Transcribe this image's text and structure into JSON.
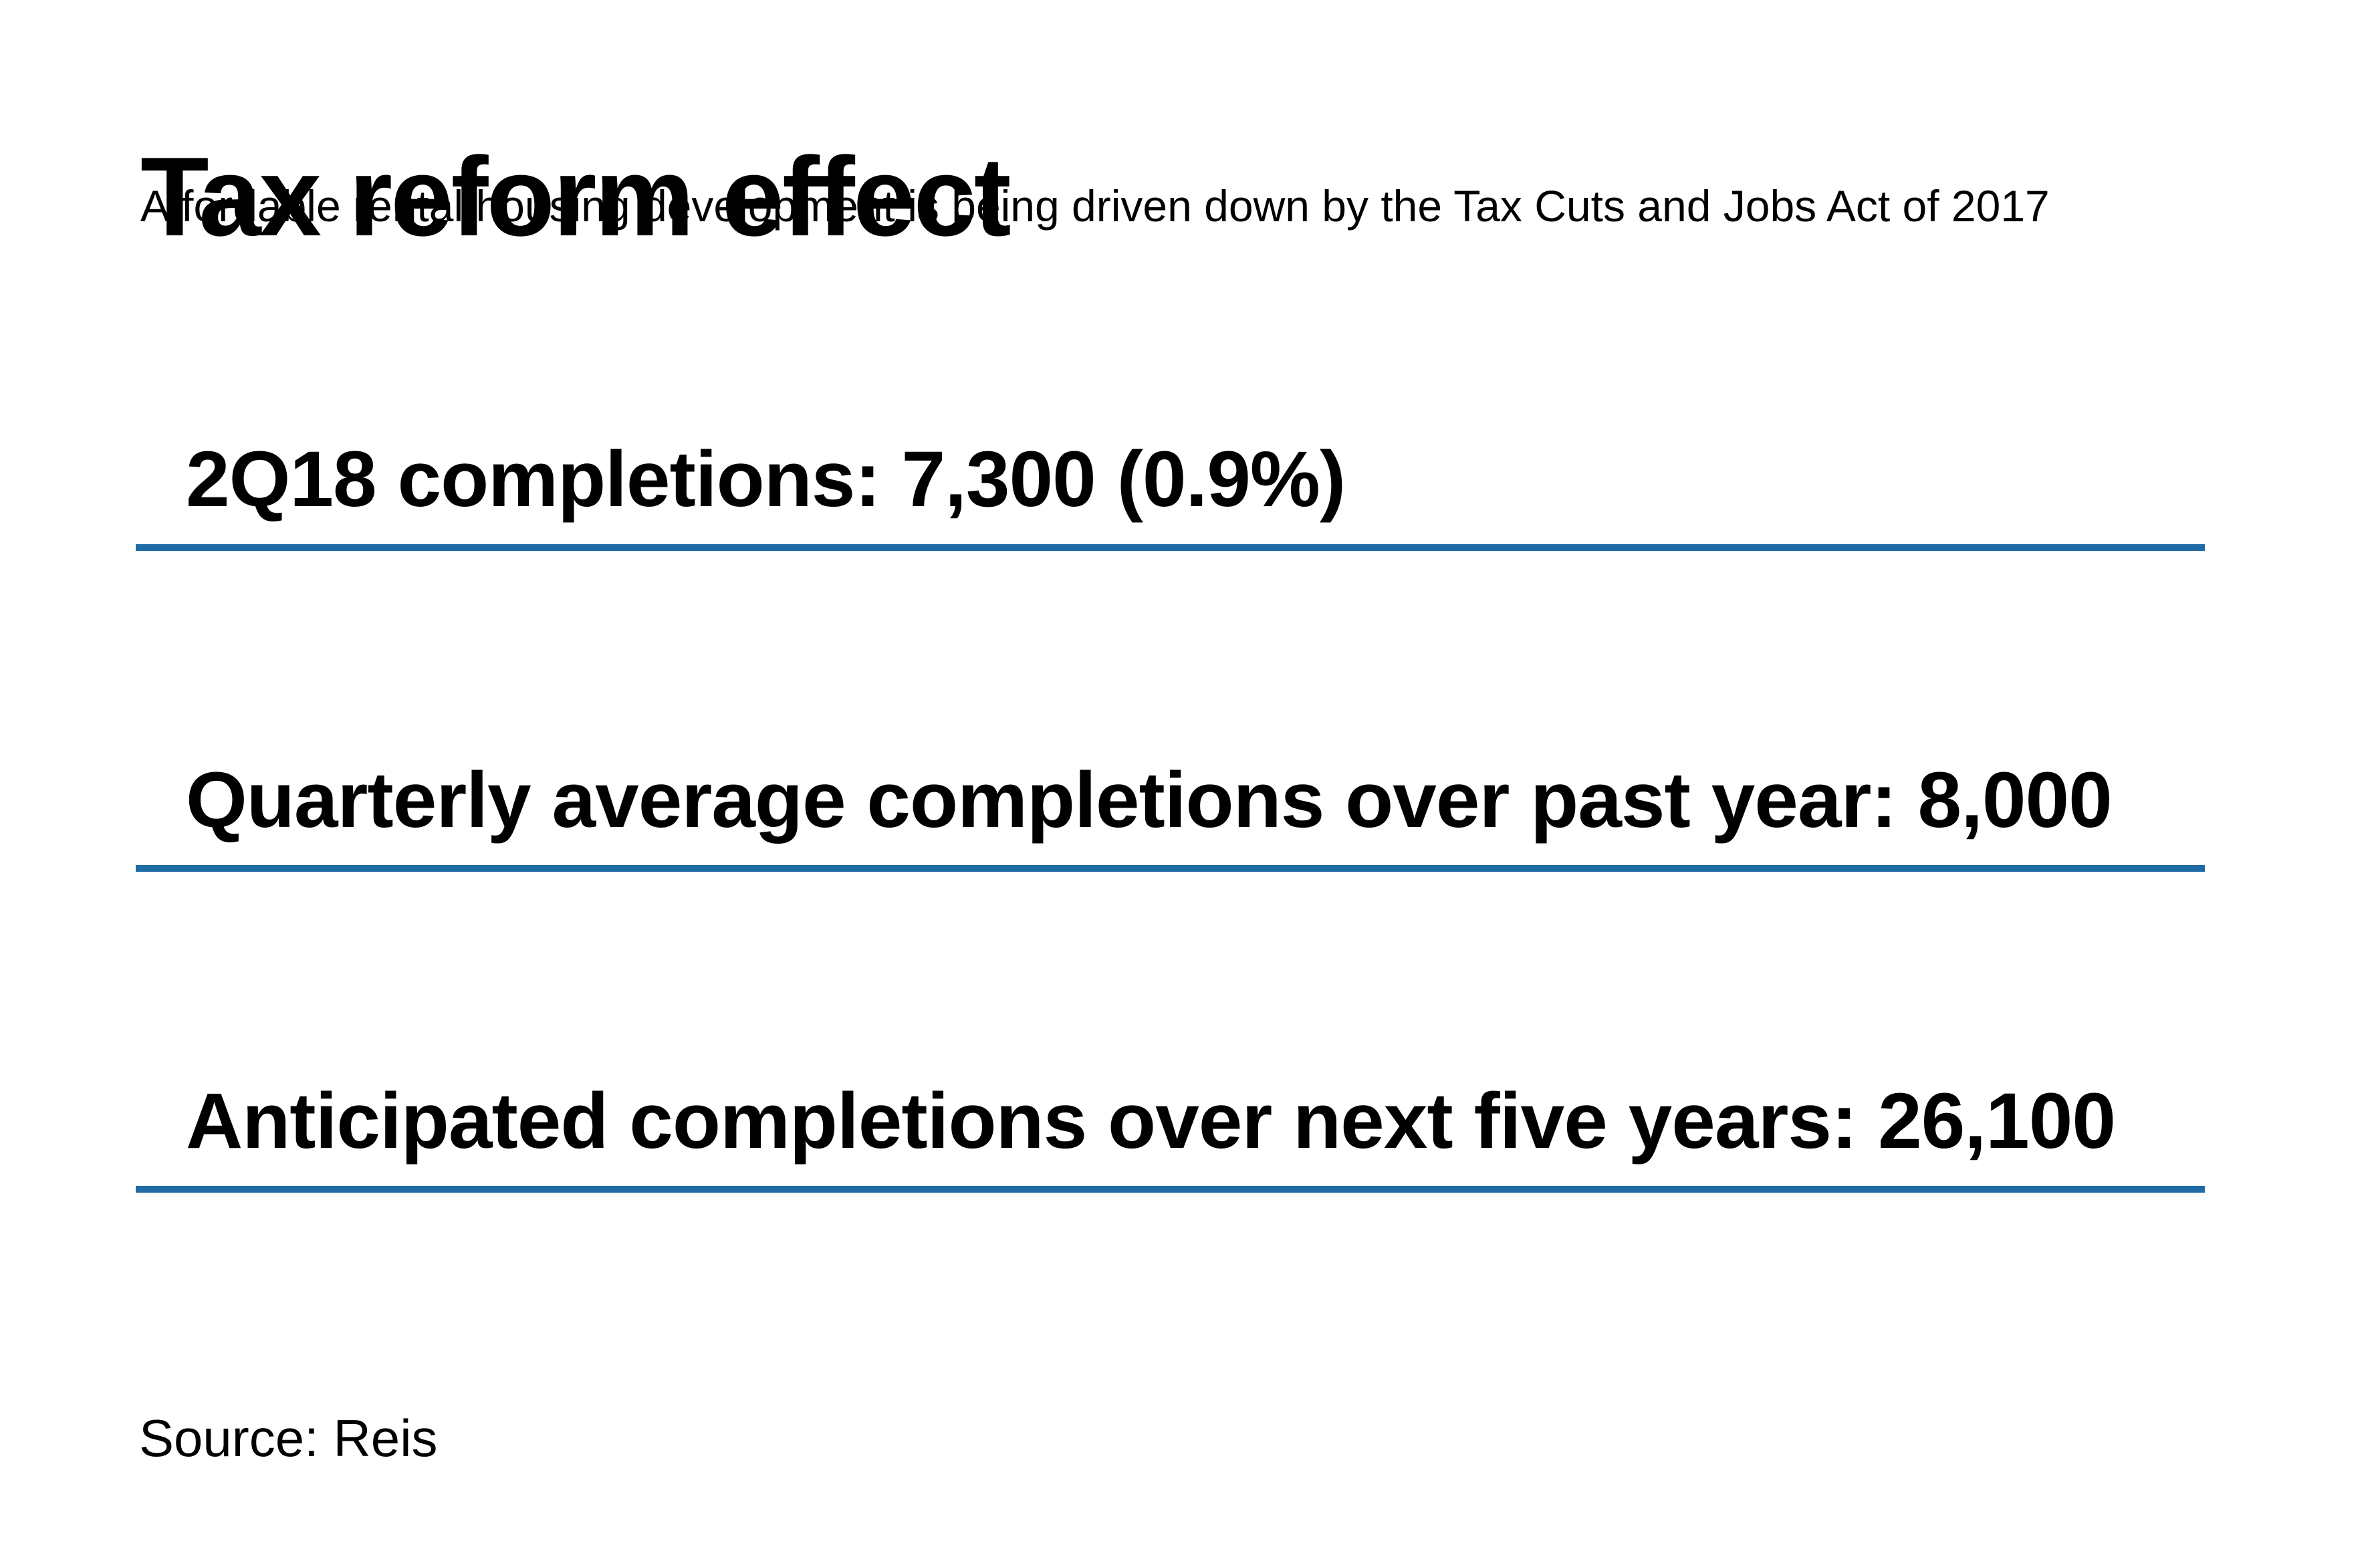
{
  "page": {
    "background_color": "#ffffff",
    "text_color": "#000000",
    "accent_color": "#1f6ba6"
  },
  "header": {
    "title": "Tax reform effect",
    "subtitle": "Affordable rental housing development is being driven down by the Tax Cuts and Jobs Act of 2017"
  },
  "stats": [
    {
      "text": "2Q18 completions: 7,300 (0.9%)"
    },
    {
      "text": "Quarterly average completions over past year: 8,000"
    },
    {
      "text": "Anticipated completions over next five years: 26,100"
    }
  ],
  "footer": {
    "source": "Source: Reis"
  },
  "chart_data": {
    "type": "table",
    "title": "Tax reform effect",
    "subtitle": "Affordable rental housing development is being driven down by the Tax Cuts and Jobs Act of 2017",
    "rows": [
      {
        "label": "2Q18 completions",
        "value": 7300,
        "percent": 0.9
      },
      {
        "label": "Quarterly average completions over past year",
        "value": 8000
      },
      {
        "label": "Anticipated completions over next five years",
        "value": 26100
      }
    ],
    "source": "Source: Reis",
    "layout": {
      "style": "stat-list",
      "rule_color": "#1f6ba6",
      "grid": false,
      "legend": false
    }
  }
}
